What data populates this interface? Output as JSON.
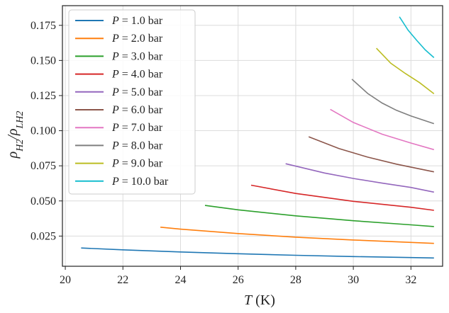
{
  "chart_data": {
    "type": "line",
    "xlabel_var": "T",
    "xlabel_unit": " (K)",
    "ylabel_main": "ρ",
    "ylabel_sub1": "H2",
    "ylabel_sep": "/ρ",
    "ylabel_sub2": "LH2",
    "xlim": [
      19.9,
      33.1
    ],
    "ylim": [
      0.0035,
      0.189
    ],
    "xticks": [
      20,
      22,
      24,
      26,
      28,
      30,
      32
    ],
    "yticks": [
      0.025,
      0.05,
      0.075,
      0.1,
      0.125,
      0.15,
      0.175
    ],
    "ytick_labels": [
      "0.025",
      "0.050",
      "0.075",
      "0.100",
      "0.125",
      "0.150",
      "0.175"
    ],
    "grid": true,
    "legend_position": "top-left",
    "legend_var": "P",
    "series": [
      {
        "name": " = 1.0 bar",
        "color": "#1f77b4",
        "x": [
          20.55,
          22,
          24,
          26,
          28,
          30,
          32,
          32.8
        ],
        "y": [
          0.0165,
          0.0152,
          0.0137,
          0.0124,
          0.0113,
          0.0104,
          0.0097,
          0.0094
        ]
      },
      {
        "name": " = 2.0 bar",
        "color": "#ff7f0e",
        "x": [
          23.3,
          24,
          26,
          28,
          30,
          32,
          32.8
        ],
        "y": [
          0.0313,
          0.0299,
          0.0268,
          0.0242,
          0.0222,
          0.0205,
          0.0198
        ]
      },
      {
        "name": " = 3.0 bar",
        "color": "#2ca02c",
        "x": [
          24.85,
          26,
          28,
          30,
          32,
          32.8
        ],
        "y": [
          0.0468,
          0.0437,
          0.0394,
          0.0359,
          0.033,
          0.0318
        ]
      },
      {
        "name": " = 4.0 bar",
        "color": "#d62728",
        "x": [
          26.45,
          28,
          30,
          32,
          32.8
        ],
        "y": [
          0.0612,
          0.0553,
          0.0497,
          0.0455,
          0.0433
        ]
      },
      {
        "name": " = 5.0 bar",
        "color": "#9467bd",
        "x": [
          27.65,
          29,
          30,
          31,
          32,
          32.8
        ],
        "y": [
          0.0765,
          0.0699,
          0.066,
          0.0627,
          0.0596,
          0.0563
        ]
      },
      {
        "name": " = 6.0 bar",
        "color": "#8c564b",
        "x": [
          28.45,
          29.5,
          30.5,
          31.5,
          32.8
        ],
        "y": [
          0.0957,
          0.0873,
          0.0812,
          0.0762,
          0.0707
        ]
      },
      {
        "name": " = 7.0 bar",
        "color": "#e377c2",
        "x": [
          29.2,
          30,
          31,
          32,
          32.8
        ],
        "y": [
          0.1152,
          0.1059,
          0.0975,
          0.0912,
          0.0865
        ]
      },
      {
        "name": " = 8.0 bar",
        "color": "#7f7f7f",
        "x": [
          29.95,
          30.5,
          31,
          31.5,
          32,
          32.8
        ],
        "y": [
          0.1367,
          0.1265,
          0.1197,
          0.1145,
          0.1105,
          0.105
        ]
      },
      {
        "name": " = 9.0 bar",
        "color": "#bcbd22",
        "x": [
          30.8,
          31.3,
          31.8,
          32.3,
          32.8
        ],
        "y": [
          0.1587,
          0.148,
          0.1408,
          0.1342,
          0.1263
        ]
      },
      {
        "name": " = 10.0 bar",
        "color": "#17becf",
        "x": [
          31.6,
          31.9,
          32.2,
          32.5,
          32.8
        ],
        "y": [
          0.1811,
          0.1716,
          0.1643,
          0.1575,
          0.152
        ]
      }
    ]
  }
}
